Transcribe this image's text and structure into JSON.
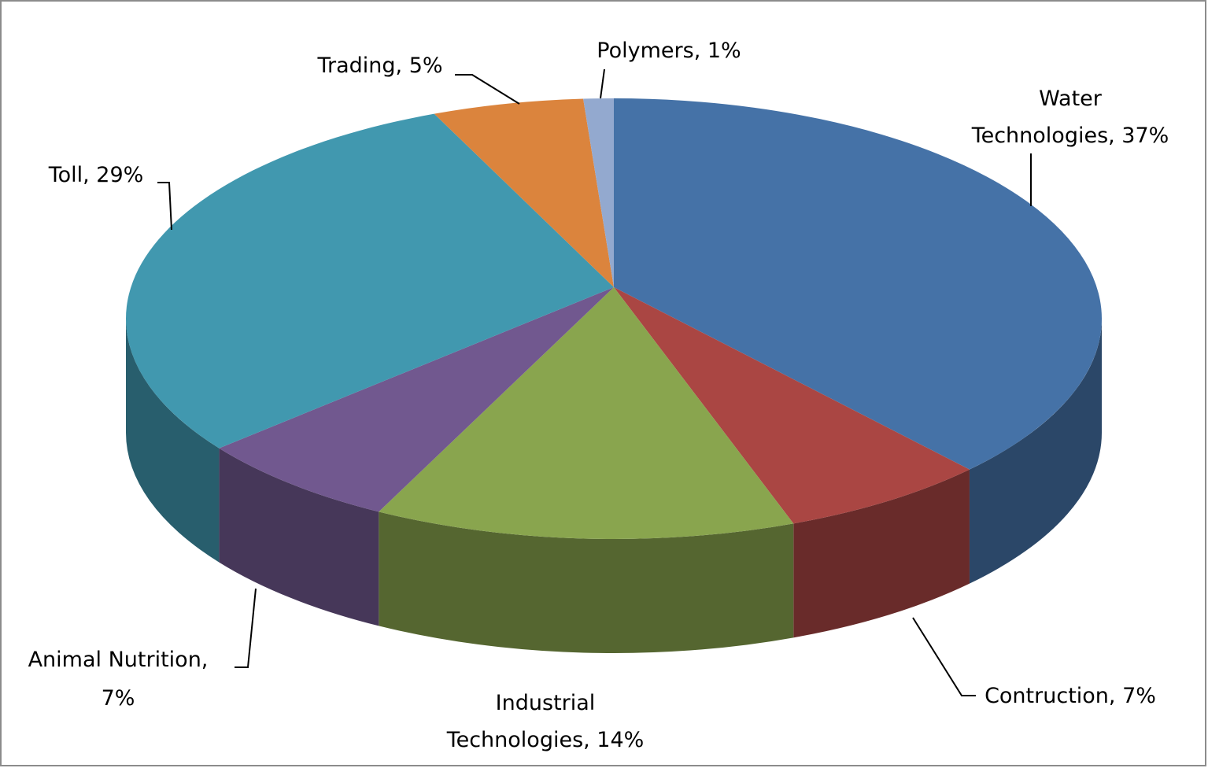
{
  "chart_data": {
    "type": "pie",
    "values": [
      37,
      7,
      14,
      7,
      29,
      5,
      1
    ],
    "value_labels": [
      "Water Technologies, 37%",
      "Contruction, 7%",
      "Industrial Technologies, 14%",
      "Animal Nutrition, 7%",
      "Toll, 29%",
      "Trading, 5%",
      "Polymers, 1%"
    ],
    "colors": [
      "#4572a7",
      "#aa4643",
      "#89a54e",
      "#71588f",
      "#4198af",
      "#db843d",
      "#93a9cf"
    ]
  }
}
